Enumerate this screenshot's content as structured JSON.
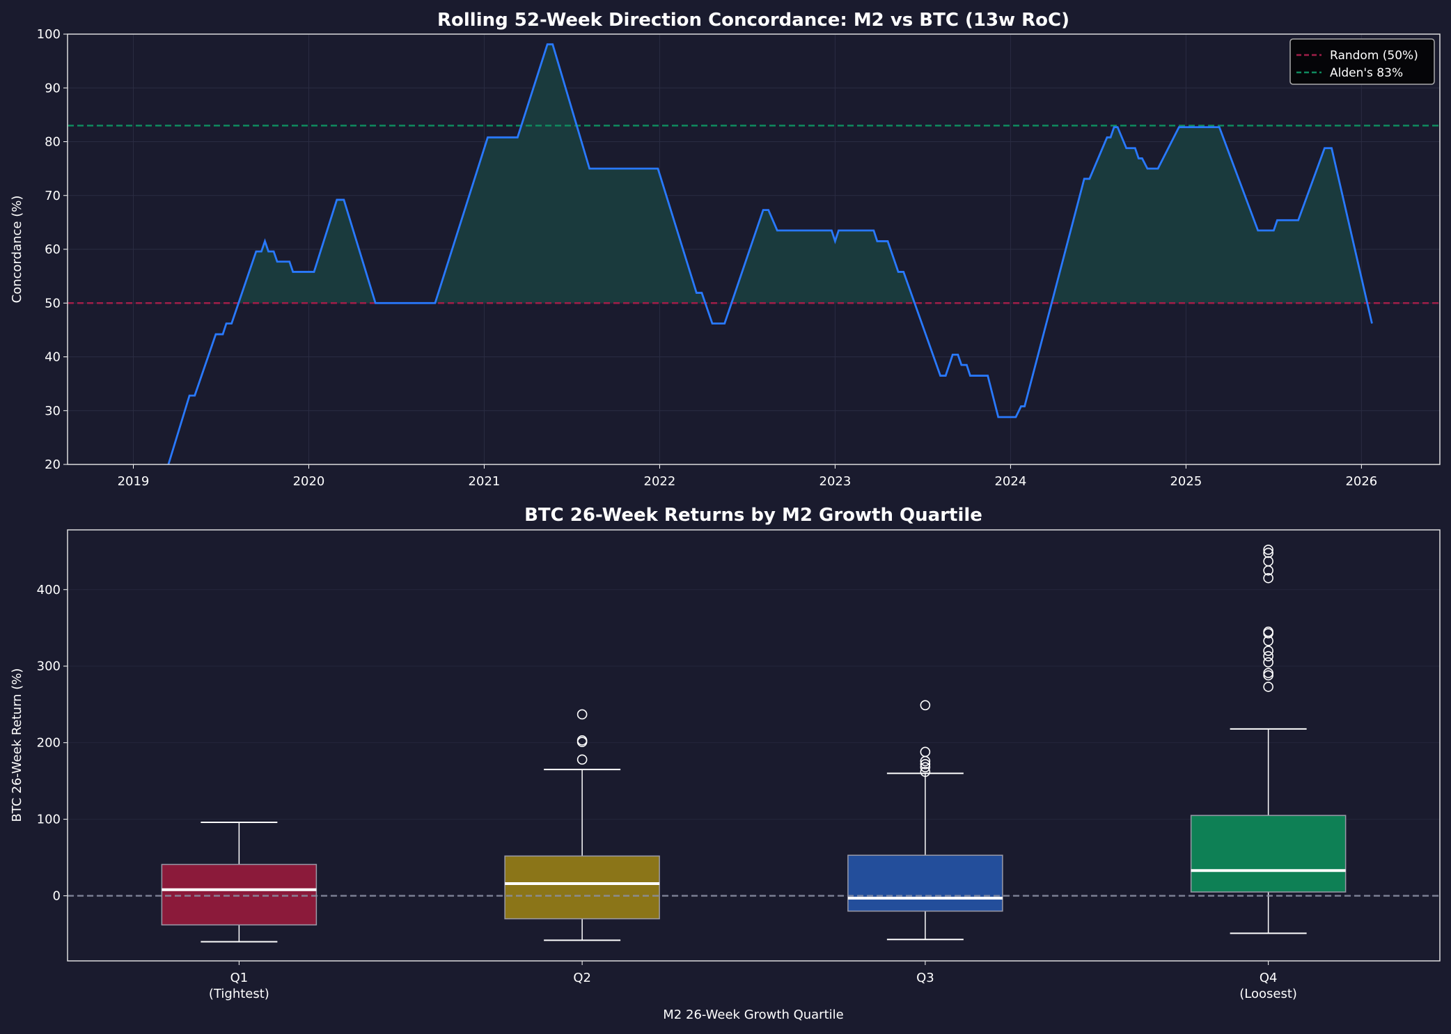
{
  "colors": {
    "background": "#1a1b2e",
    "line": "#2979ff",
    "fill": "#1a3a3d",
    "random": "#a01e48",
    "alden": "#0f8a5f",
    "zero": "#8a8fa3"
  },
  "chart_data": [
    {
      "type": "line",
      "title": "Rolling 52-Week Direction Concordance: M2 vs BTC (13w RoC)",
      "xlabel": "",
      "ylabel": "Concordance (%)",
      "xlim": [
        2018.625,
        2026.447
      ],
      "ylim": [
        20,
        100
      ],
      "xticks": [
        2019,
        2020,
        2021,
        2022,
        2023,
        2024,
        2025,
        2026
      ],
      "xtick_labels": [
        "2019",
        "2020",
        "2021",
        "2022",
        "2023",
        "2024",
        "2025",
        "2026"
      ],
      "yticks": [
        20,
        30,
        40,
        50,
        60,
        70,
        80,
        90,
        100
      ],
      "ytick_labels": [
        "20",
        "30",
        "40",
        "50",
        "60",
        "70",
        "80",
        "90",
        "100"
      ],
      "grid": true,
      "legend": "top-right",
      "fill_above": 50,
      "reference_lines": [
        {
          "name": "Random (50%)",
          "y": 50,
          "color": "#a01e48"
        },
        {
          "name": "Alden's 83%",
          "y": 83,
          "color": "#0f8a5f"
        }
      ],
      "x": [
        2019.2,
        2019.32,
        2019.35,
        2019.47,
        2019.51,
        2019.53,
        2019.56,
        2019.7,
        2019.73,
        2019.75,
        2019.77,
        2019.8,
        2019.82,
        2019.89,
        2019.91,
        2020.03,
        2020.16,
        2020.2,
        2020.38,
        2020.72,
        2021.02,
        2021.19,
        2021.36,
        2021.39,
        2021.6,
        2021.99,
        2022.21,
        2022.24,
        2022.3,
        2022.37,
        2022.59,
        2022.62,
        2022.67,
        2022.98,
        2023.0,
        2023.02,
        2023.22,
        2023.24,
        2023.3,
        2023.36,
        2023.39,
        2023.6,
        2023.63,
        2023.67,
        2023.7,
        2023.72,
        2023.75,
        2023.77,
        2023.87,
        2023.93,
        2024.03,
        2024.06,
        2024.08,
        2024.42,
        2024.45,
        2024.55,
        2024.57,
        2024.59,
        2024.61,
        2024.66,
        2024.71,
        2024.73,
        2024.75,
        2024.78,
        2024.84,
        2024.96,
        2025.19,
        2025.41,
        2025.5,
        2025.52,
        2025.64,
        2025.79,
        2025.83,
        2026.06
      ],
      "y": [
        20,
        32.8,
        32.8,
        44.2,
        44.2,
        46.2,
        46.2,
        59.6,
        59.6,
        61.5,
        59.6,
        59.6,
        57.7,
        57.7,
        55.8,
        55.8,
        69.2,
        69.2,
        50,
        50,
        80.8,
        80.8,
        98.1,
        98.1,
        75,
        75,
        51.9,
        51.9,
        46.2,
        46.2,
        67.3,
        67.3,
        63.5,
        63.5,
        61.5,
        63.5,
        63.5,
        61.5,
        61.5,
        55.8,
        55.8,
        36.5,
        36.5,
        40.4,
        40.4,
        38.5,
        38.5,
        36.5,
        36.5,
        28.8,
        28.8,
        30.8,
        30.8,
        73.1,
        73.1,
        80.8,
        80.8,
        82.7,
        82.7,
        78.8,
        78.8,
        76.9,
        76.9,
        75,
        75,
        82.7,
        82.7,
        63.5,
        63.5,
        65.4,
        65.4,
        78.8,
        78.8,
        46.2
      ]
    },
    {
      "type": "box",
      "title": "BTC 26-Week Returns by M2 Growth Quartile",
      "xlabel": "M2 26-Week Growth Quartile",
      "ylabel": "BTC 26-Week Return (%)",
      "ylim": [
        -85,
        478
      ],
      "yticks": [
        0,
        100,
        200,
        300,
        400
      ],
      "ytick_labels": [
        "0",
        "100",
        "200",
        "300",
        "400"
      ],
      "grid": true,
      "zero_line": 0,
      "categories": [
        {
          "label": "Q1",
          "sub": "(Tightest)",
          "color": "#8b1a3a",
          "whisker_low": -60,
          "q1": -38,
          "median": 8,
          "q3": 41,
          "whisker_high": 96,
          "outliers": []
        },
        {
          "label": "Q2",
          "sub": "",
          "color": "#8b7518",
          "whisker_low": -58,
          "q1": -30,
          "median": 16,
          "q3": 52,
          "whisker_high": 165,
          "outliers": [
            178,
            201,
            203,
            237
          ]
        },
        {
          "label": "Q3",
          "sub": "",
          "color": "#234e9b",
          "whisker_low": -57,
          "q1": -20,
          "median": -3,
          "q3": 53,
          "whisker_high": 160,
          "outliers": [
            162,
            168,
            172,
            176,
            188,
            249
          ]
        },
        {
          "label": "Q4",
          "sub": "(Loosest)",
          "color": "#0e8055",
          "whisker_low": -49,
          "q1": 5,
          "median": 33,
          "q3": 105,
          "whisker_high": 218,
          "outliers": [
            273,
            288,
            291,
            305,
            313,
            320,
            333,
            343,
            345,
            415,
            425,
            437,
            448,
            452
          ]
        }
      ]
    }
  ]
}
